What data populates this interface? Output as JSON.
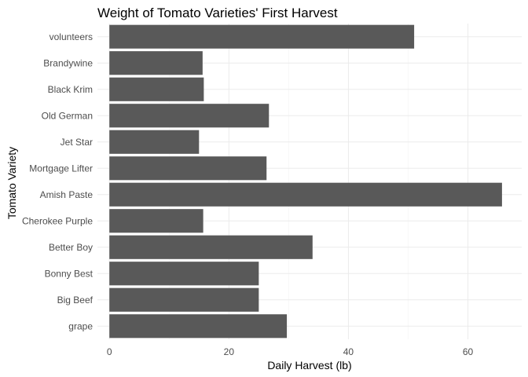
{
  "chart_data": {
    "type": "bar",
    "orientation": "horizontal",
    "title": "Weight of Tomato Varieties' First Harvest",
    "xlabel": "Daily Harvest (lb)",
    "ylabel": "Tomato Variety",
    "categories": [
      "volunteers",
      "Brandywine",
      "Black Krim",
      "Old German",
      "Jet Star",
      "Mortgage Lifter",
      "Amish Paste",
      "Cherokee Purple",
      "Better Boy",
      "Bonny Best",
      "Big Beef",
      "grape"
    ],
    "values": [
      51,
      15.6,
      15.8,
      26.7,
      15.0,
      26.3,
      65.7,
      15.7,
      34.0,
      25.0,
      25.0,
      29.7
    ],
    "xlim": [
      -2,
      69
    ],
    "xticks": [
      0,
      20,
      40,
      60
    ],
    "grid": true,
    "bar_color": "#595959"
  }
}
